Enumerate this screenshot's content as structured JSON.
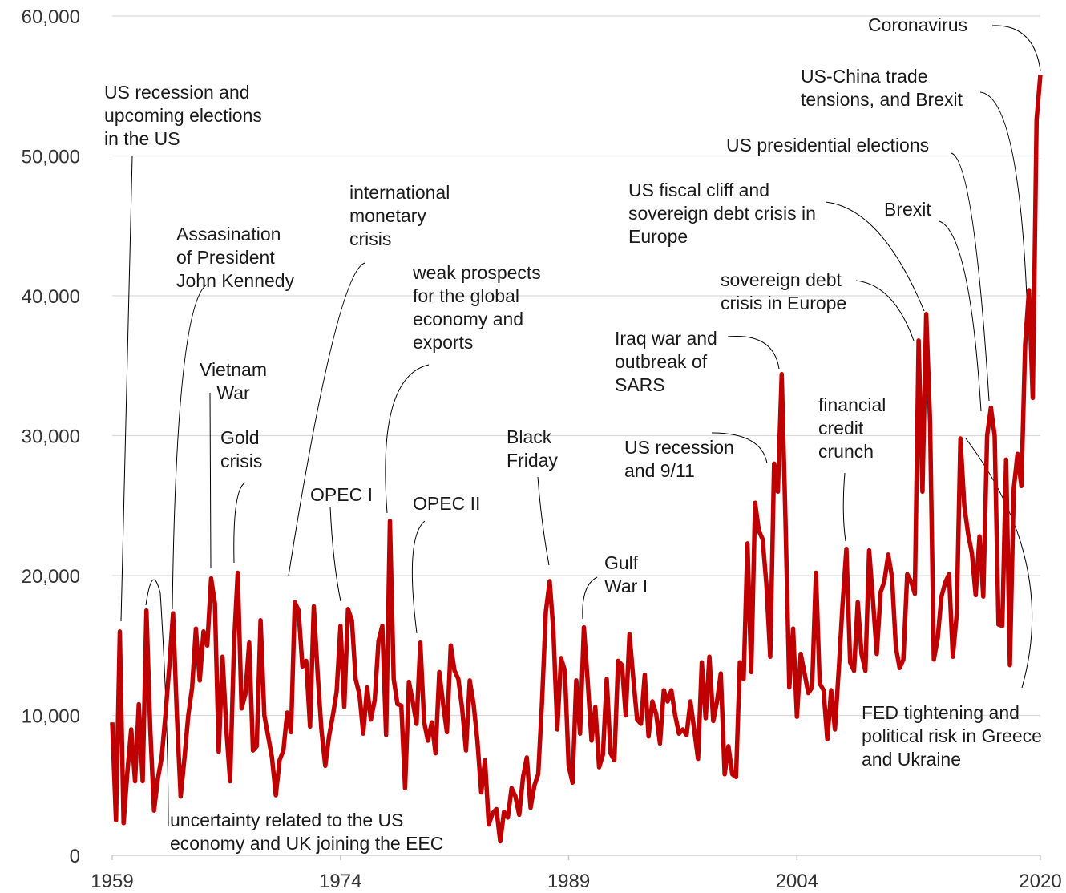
{
  "chart_data": {
    "type": "line",
    "color": "#c00000",
    "grid": true,
    "xlim": [
      1959,
      2020
    ],
    "xticks": [
      1959,
      1974,
      1989,
      2004,
      2020
    ],
    "ylim": [
      0,
      60000
    ],
    "yticks": [
      0,
      {
        "value": 10000,
        "label": "10,000"
      },
      {
        "value": 20000,
        "label": "20,000"
      },
      {
        "value": 30000,
        "label": "30,000"
      },
      {
        "value": 40000,
        "label": "40,000"
      },
      {
        "value": 50000,
        "label": "50,000"
      },
      {
        "value": 60000,
        "label": "60,000"
      }
    ],
    "x": [
      1959,
      1959.25,
      1959.5,
      1959.75,
      1960,
      1960.25,
      1960.5,
      1960.75,
      1961,
      1961.25,
      1961.5,
      1961.75,
      1962,
      1962.25,
      1962.5,
      1962.75,
      1963,
      1963.25,
      1963.5,
      1963.75,
      1964,
      1964.25,
      1964.5,
      1964.75,
      1965,
      1965.25,
      1965.5,
      1965.75,
      1966,
      1966.25,
      1966.5,
      1966.75,
      1967,
      1967.25,
      1967.5,
      1967.75,
      1968,
      1968.25,
      1968.5,
      1968.75,
      1969,
      1969.25,
      1969.5,
      1969.75,
      1970,
      1970.25,
      1970.5,
      1970.75,
      1971,
      1971.25,
      1971.5,
      1971.75,
      1972,
      1972.25,
      1972.5,
      1972.75,
      1973,
      1973.25,
      1973.5,
      1973.75,
      1974,
      1974.25,
      1974.5,
      1974.75,
      1975,
      1975.25,
      1975.5,
      1975.75,
      1976,
      1976.25,
      1976.5,
      1976.75,
      1977,
      1977.25,
      1977.5,
      1977.75,
      1978,
      1978.25,
      1978.5,
      1978.75,
      1979,
      1979.25,
      1979.5,
      1979.75,
      1980,
      1980.25,
      1980.5,
      1980.75,
      1981,
      1981.25,
      1981.5,
      1981.75,
      1982,
      1982.25,
      1982.5,
      1982.75,
      1983,
      1983.25,
      1983.5,
      1983.75,
      1984,
      1984.25,
      1984.5,
      1984.75,
      1985,
      1985.25,
      1985.5,
      1985.75,
      1986,
      1986.25,
      1986.5,
      1986.75,
      1987,
      1987.25,
      1987.5,
      1987.75,
      1988,
      1988.25,
      1988.5,
      1988.75,
      1989,
      1989.25,
      1989.5,
      1989.75,
      1990,
      1990.25,
      1990.5,
      1990.75,
      1991,
      1991.25,
      1991.5,
      1991.75,
      1992,
      1992.25,
      1992.5,
      1992.75,
      1993,
      1993.25,
      1993.5,
      1993.75,
      1994,
      1994.25,
      1994.5,
      1994.75,
      1995,
      1995.25,
      1995.5,
      1995.75,
      1996,
      1996.25,
      1996.5,
      1996.75,
      1997,
      1997.25,
      1997.5,
      1997.75,
      1998,
      1998.25,
      1998.5,
      1998.75,
      1999,
      1999.25,
      1999.5,
      1999.75,
      2000,
      2000.25,
      2000.5,
      2000.75,
      2001,
      2001.25,
      2001.5,
      2001.75,
      2002,
      2002.25,
      2002.5,
      2002.75,
      2003,
      2003.25,
      2003.5,
      2003.75,
      2004,
      2004.25,
      2004.5,
      2004.75,
      2005,
      2005.25,
      2005.5,
      2005.75,
      2006,
      2006.25,
      2006.5,
      2006.75,
      2007,
      2007.25,
      2007.5,
      2007.75,
      2008,
      2008.25,
      2008.5,
      2008.75,
      2009,
      2009.25,
      2009.5,
      2009.75,
      2010,
      2010.25,
      2010.5,
      2010.75,
      2011,
      2011.25,
      2011.5,
      2011.75,
      2012,
      2012.25,
      2012.5,
      2012.75,
      2013,
      2013.25,
      2013.5,
      2013.75,
      2014,
      2014.25,
      2014.5,
      2014.75,
      2015,
      2015.25,
      2015.5,
      2015.75,
      2016,
      2016.25,
      2016.5,
      2016.75,
      2017,
      2017.25,
      2017.5,
      2017.75,
      2018,
      2018.25,
      2018.5,
      2018.75,
      2019,
      2019.25,
      2019.5,
      2019.75,
      2020
    ],
    "values": [
      9500,
      2500,
      16000,
      2300,
      6000,
      9000,
      5300,
      10800,
      5300,
      17500,
      9000,
      3200,
      5500,
      7000,
      10000,
      13500,
      17300,
      10000,
      4200,
      7000,
      10000,
      12000,
      16200,
      12500,
      16000,
      15000,
      19800,
      18000,
      7400,
      14200,
      9000,
      5300,
      15000,
      20200,
      10500,
      11500,
      15200,
      7500,
      7800,
      16800,
      10000,
      8500,
      7000,
      4300,
      6800,
      7500,
      10200,
      8800,
      18100,
      17500,
      13500,
      13900,
      9200,
      17800,
      13000,
      9000,
      6400,
      8500,
      10000,
      11700,
      16400,
      10600,
      17600,
      16800,
      12600,
      11500,
      8700,
      12000,
      9700,
      11100,
      15300,
      16400,
      8600,
      23900,
      12600,
      10800,
      10700,
      4800,
      12400,
      11000,
      9400,
      15200,
      9500,
      8200,
      9500,
      7300,
      13100,
      10800,
      8800,
      15000,
      13200,
      12600,
      10500,
      7500,
      12500,
      10800,
      8200,
      4500,
      6800,
      2200,
      3000,
      3300,
      1000,
      3100,
      2700,
      4800,
      4200,
      2900,
      5600,
      7000,
      3400,
      5000,
      5800,
      11000,
      17400,
      19600,
      16000,
      9000,
      14100,
      13200,
      6400,
      5200,
      12500,
      8700,
      16300,
      12500,
      8200,
      10600,
      6300,
      7200,
      12600,
      7300,
      6800,
      13900,
      13600,
      10000,
      15800,
      12600,
      9700,
      9400,
      12900,
      8500,
      11000,
      10100,
      8000,
      11800,
      11000,
      11800,
      10000,
      8700,
      9000,
      8600,
      11000,
      9000,
      6900,
      13800,
      9800,
      14200,
      9600,
      11000,
      13000,
      5800,
      7800,
      5800,
      5600,
      13800,
      12600,
      22300,
      13100,
      25200,
      23200,
      22600,
      19300,
      14200,
      28000,
      26000,
      34400,
      24000,
      12000,
      16200,
      9900,
      14400,
      13000,
      11600,
      12000,
      20200,
      12300,
      11800,
      8300,
      11800,
      9000,
      13300,
      17900,
      21900,
      13800,
      13200,
      18100,
      14400,
      13200,
      21800,
      18200,
      14400,
      18800,
      19600,
      21500,
      19900,
      14900,
      13400,
      14000,
      20100,
      19600,
      18700,
      36800,
      26000,
      38700,
      31000,
      14000,
      15500,
      18500,
      19500,
      20100,
      14200,
      17200,
      29800,
      25000,
      23000,
      21600,
      18600,
      22800,
      18500,
      30000,
      32000,
      30000,
      16500,
      16400,
      28300,
      13600,
      26200,
      28700,
      26400,
      36500,
      40400,
      32700,
      52600,
      55800
    ],
    "annotations": [
      {
        "lines": [
          "US recession and",
          "upcoming  elections",
          "in the US"
        ]
      },
      {
        "lines": [
          "Assasination",
          "of President",
          "John Kennedy"
        ]
      },
      {
        "lines": [
          "Vietnam",
          "War"
        ]
      },
      {
        "lines": [
          "Gold",
          "crisis"
        ]
      },
      {
        "lines": [
          "international",
          "monetary",
          "crisis"
        ]
      },
      {
        "lines": [
          "weak prospects",
          "for the global",
          "economy and",
          "exports"
        ]
      },
      {
        "lines": [
          "OPEC I"
        ]
      },
      {
        "lines": [
          "OPEC II"
        ]
      },
      {
        "lines": [
          "uncertainty related to the US",
          "economy and UK joining the EEC"
        ]
      },
      {
        "lines": [
          "Black",
          "Friday"
        ]
      },
      {
        "lines": [
          "Gulf",
          "War I"
        ]
      },
      {
        "lines": [
          "Iraq war and",
          "outbreak of",
          "SARS"
        ]
      },
      {
        "lines": [
          "US recession",
          "and 9/11"
        ]
      },
      {
        "lines": [
          "sovereign debt",
          "crisis in Europe"
        ]
      },
      {
        "lines": [
          "US fiscal cliff and",
          "sovereign debt crisis in",
          "Europe"
        ]
      },
      {
        "lines": [
          "financial",
          "credit",
          "crunch"
        ]
      },
      {
        "lines": [
          "Brexit"
        ]
      },
      {
        "lines": [
          "US presidential elections"
        ]
      },
      {
        "lines": [
          "US-China trade",
          "tensions, and Brexit"
        ]
      },
      {
        "lines": [
          "Coronavirus"
        ]
      },
      {
        "lines": [
          "FED tightening  and",
          "political risk in Greece",
          "and Ukraine"
        ]
      }
    ]
  }
}
